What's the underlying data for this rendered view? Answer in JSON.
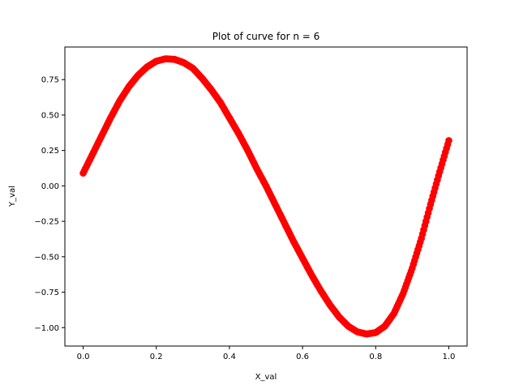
{
  "chart_data": {
    "type": "scatter",
    "title": "Plot of curve for n = 6",
    "xlabel": "X_val",
    "ylabel": "Y_val",
    "xlim": [
      -0.05,
      1.05
    ],
    "ylim": [
      -1.13,
      0.98
    ],
    "grid": false,
    "legend": "none",
    "x_ticks": [
      {
        "value": 0.0,
        "label": "0.0"
      },
      {
        "value": 0.2,
        "label": "0.2"
      },
      {
        "value": 0.4,
        "label": "0.4"
      },
      {
        "value": 0.6,
        "label": "0.6"
      },
      {
        "value": 0.8,
        "label": "0.8"
      },
      {
        "value": 1.0,
        "label": "1.0"
      }
    ],
    "y_ticks": [
      {
        "value": 0.75,
        "label": "0.75"
      },
      {
        "value": 0.5,
        "label": "0.50"
      },
      {
        "value": 0.25,
        "label": "0.25"
      },
      {
        "value": 0.0,
        "label": "0.00"
      },
      {
        "value": -0.25,
        "label": "−0.25"
      },
      {
        "value": -0.5,
        "label": "−0.50"
      },
      {
        "value": -0.75,
        "label": "−0.75"
      },
      {
        "value": -1.0,
        "label": "−1.00"
      }
    ],
    "series": [
      {
        "color": "#ff0000",
        "x": [
          0.0,
          0.025,
          0.05,
          0.075,
          0.1,
          0.125,
          0.15,
          0.175,
          0.2,
          0.225,
          0.25,
          0.275,
          0.3,
          0.325,
          0.35,
          0.375,
          0.4,
          0.425,
          0.45,
          0.475,
          0.5,
          0.525,
          0.55,
          0.575,
          0.6,
          0.625,
          0.65,
          0.675,
          0.7,
          0.725,
          0.75,
          0.775,
          0.8,
          0.825,
          0.85,
          0.875,
          0.9,
          0.925,
          0.95,
          0.975,
          1.0
        ],
        "y": [
          0.09,
          0.22,
          0.35,
          0.48,
          0.6,
          0.7,
          0.78,
          0.84,
          0.88,
          0.897,
          0.893,
          0.87,
          0.83,
          0.76,
          0.68,
          0.59,
          0.48,
          0.37,
          0.25,
          0.12,
          0.0,
          -0.13,
          -0.26,
          -0.39,
          -0.51,
          -0.63,
          -0.74,
          -0.84,
          -0.925,
          -0.99,
          -1.03,
          -1.045,
          -1.035,
          -0.99,
          -0.9,
          -0.76,
          -0.58,
          -0.37,
          -0.13,
          0.1,
          0.32
        ]
      }
    ]
  }
}
